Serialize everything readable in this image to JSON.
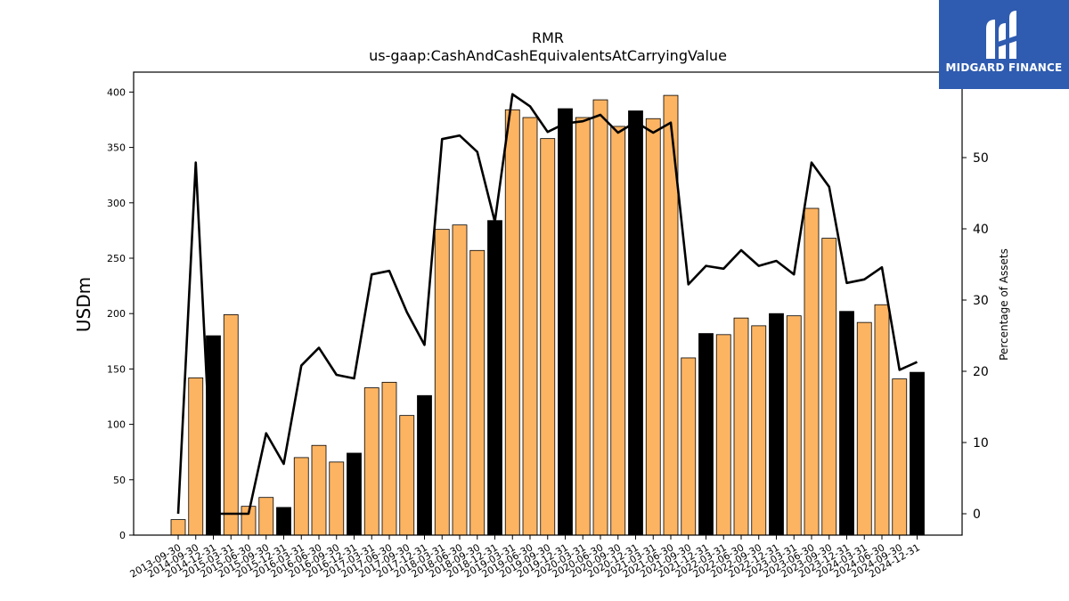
{
  "chart_data": {
    "type": "bar",
    "title": "RMR",
    "subtitle": "us-gaap:CashAndCashEquivalentsAtCarryingValue",
    "ylabel": "USDm",
    "y2label": "Percentage of Assets",
    "ylim": [
      0,
      418
    ],
    "y2lim": [
      -3,
      62
    ],
    "yticks": [
      0,
      50,
      100,
      150,
      200,
      250,
      300,
      350,
      400
    ],
    "y2ticks": [
      0,
      10,
      20,
      30,
      40,
      50
    ],
    "colors": {
      "bar": "#fdb462",
      "bar_highlight": "#000000",
      "line": "#000000",
      "bar_edge": "#000000"
    },
    "categories": [
      "2013-09-30",
      "2014-09-30",
      "2014-12-31",
      "2015-03-31",
      "2015-06-30",
      "2015-09-30",
      "2015-12-31",
      "2016-03-31",
      "2016-06-30",
      "2016-09-30",
      "2016-12-31",
      "2017-03-31",
      "2017-06-30",
      "2017-09-30",
      "2017-12-31",
      "2018-03-31",
      "2018-06-30",
      "2018-09-30",
      "2018-12-31",
      "2019-03-31",
      "2019-06-30",
      "2019-09-30",
      "2019-12-31",
      "2020-03-31",
      "2020-06-30",
      "2020-09-30",
      "2020-12-31",
      "2021-03-31",
      "2021-06-30",
      "2021-09-30",
      "2021-12-31",
      "2022-03-31",
      "2022-06-30",
      "2022-09-30",
      "2022-12-31",
      "2023-03-31",
      "2023-06-30",
      "2023-09-30",
      "2023-12-31",
      "2024-03-31",
      "2024-06-30",
      "2024-09-30",
      "2024-12-31"
    ],
    "series": [
      {
        "values": [
          14,
          142,
          180,
          199,
          26,
          34,
          25,
          70,
          81,
          66,
          74,
          133,
          138,
          108,
          126,
          276,
          280,
          257,
          284,
          384,
          377,
          358,
          385,
          377,
          393,
          369,
          383,
          376,
          397,
          160,
          182,
          181,
          196,
          189,
          200,
          198,
          295,
          268,
          202,
          192,
          208,
          141,
          147
        ],
        "highlight": [
          false,
          false,
          true,
          false,
          false,
          false,
          true,
          false,
          false,
          false,
          true,
          false,
          false,
          false,
          true,
          false,
          false,
          false,
          true,
          false,
          false,
          false,
          true,
          false,
          false,
          false,
          true,
          false,
          false,
          false,
          true,
          false,
          false,
          false,
          true,
          false,
          false,
          false,
          true,
          false,
          false,
          false,
          true
        ]
      },
      {
        "axis": "right",
        "values": [
          0,
          49.3,
          0,
          0,
          0,
          11.3,
          7,
          20.8,
          23.3,
          19.5,
          19,
          33.6,
          34.1,
          28.3,
          23.7,
          52.6,
          53.1,
          50.8,
          41,
          58.9,
          57.2,
          53.6,
          54.8,
          55.1,
          56,
          53.5,
          55,
          53.5,
          54.9,
          32.2,
          34.8,
          34.4,
          37,
          34.8,
          35.5,
          33.6,
          49.3,
          45.9,
          32.4,
          32.9,
          34.6,
          20.2,
          21.3
        ]
      }
    ]
  },
  "logo": {
    "text": "MIDGARD FINANCE"
  }
}
